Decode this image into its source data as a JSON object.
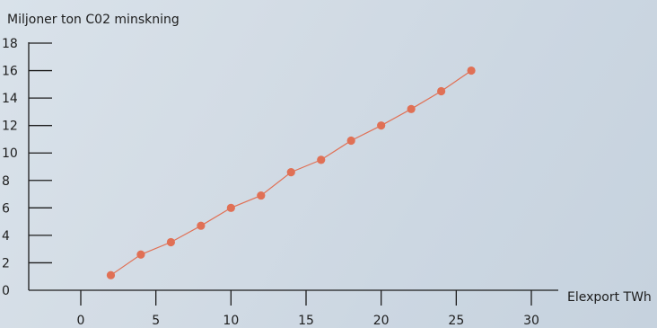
{
  "chart_data": {
    "type": "line",
    "title": "",
    "ylabel": "Miljoner ton C02 minskning",
    "xlabel": "Elexport TWh",
    "xlim": [
      0,
      30
    ],
    "ylim": [
      0,
      18
    ],
    "x_ticks": [
      0,
      5,
      10,
      15,
      20,
      25,
      30
    ],
    "y_ticks": [
      0,
      2,
      4,
      6,
      8,
      10,
      12,
      14,
      16,
      18
    ],
    "grid": false,
    "legend": "none",
    "series": [
      {
        "x": [
          2,
          4,
          6,
          8,
          10,
          12,
          14,
          16,
          18,
          20,
          22,
          24,
          26
        ],
        "values": [
          1.1,
          2.6,
          3.5,
          4.7,
          6.0,
          6.9,
          8.6,
          9.5,
          10.9,
          12.0,
          13.2,
          14.5,
          16.0
        ],
        "color": "#e07055"
      }
    ]
  }
}
